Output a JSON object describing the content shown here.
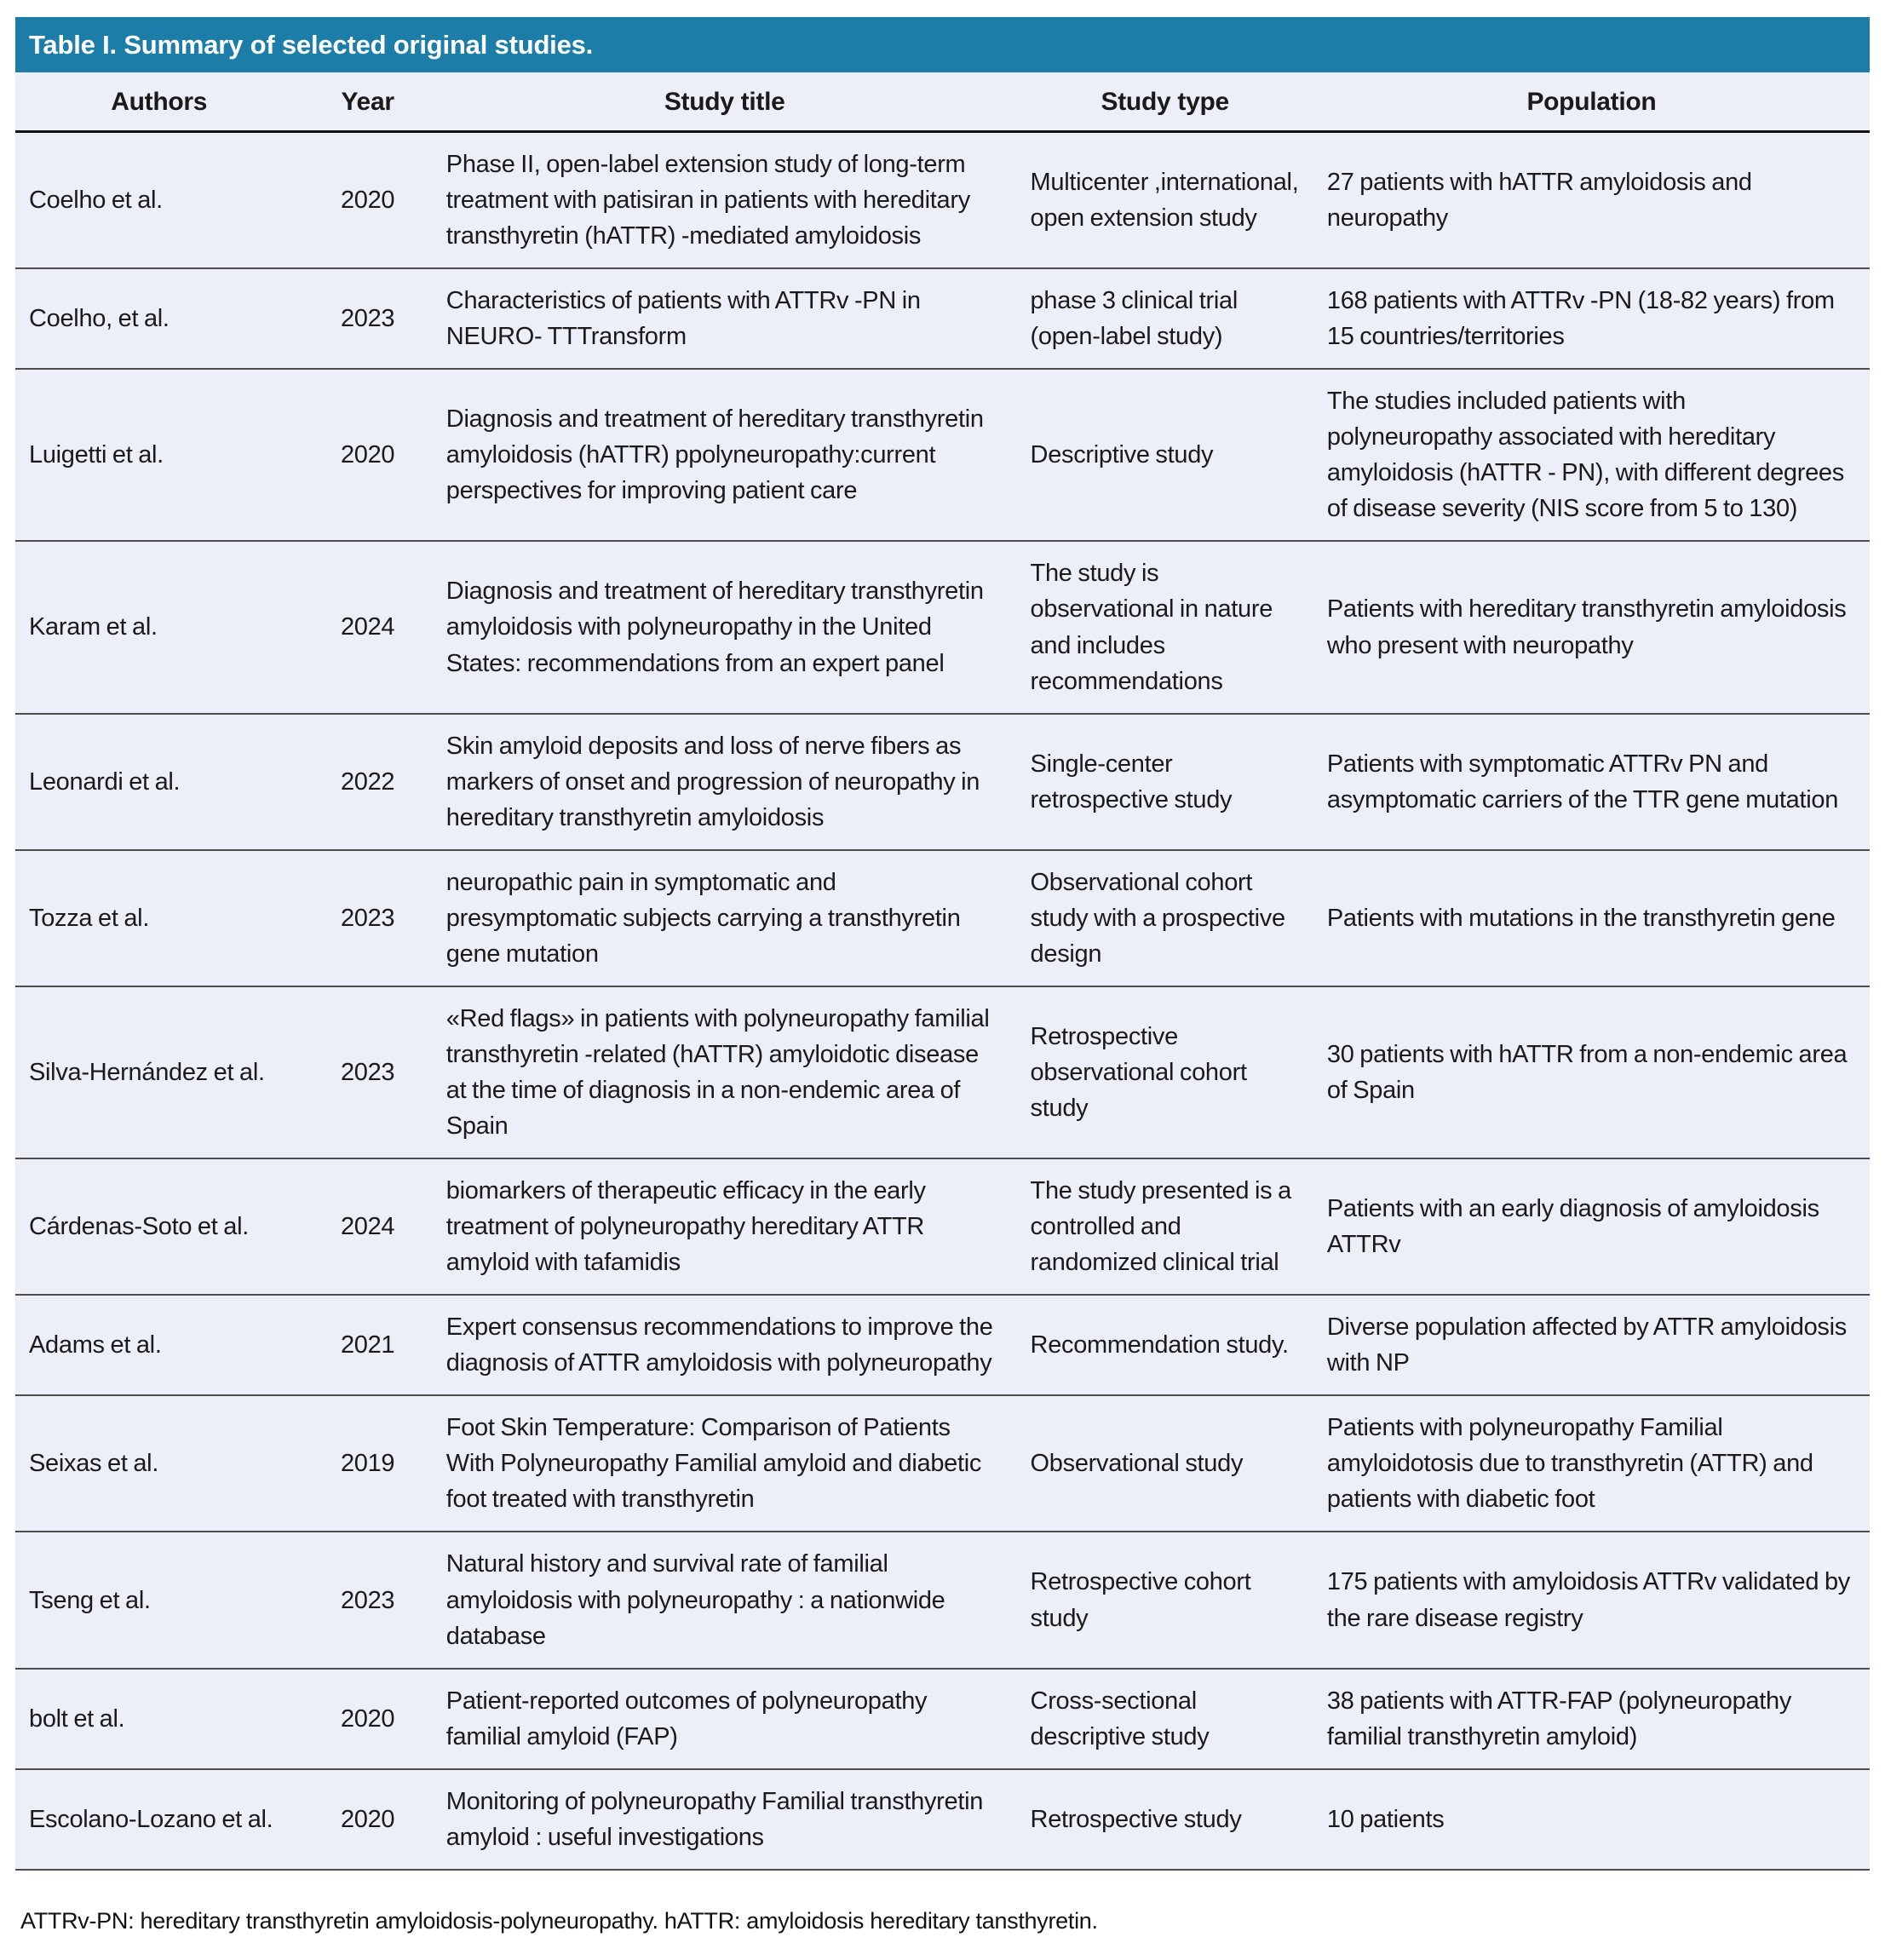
{
  "table": {
    "title": "Table I. Summary of selected original studies.",
    "columns": [
      "Authors",
      "Year",
      "Study title",
      "Study type",
      "Population"
    ],
    "rows": [
      {
        "authors": "Coelho et al.",
        "year": "2020",
        "title": "Phase II, open-label extension study of long-term treatment with patisiran in patients with hereditary transthyretin (hATTR) -mediated amyloidosis",
        "type": "Multicenter ,international, open extension study",
        "population": "27 patients with hATTR amyloidosis and neuropathy"
      },
      {
        "authors": "Coelho, et al.",
        "year": "2023",
        "title": "Characteristics of patients with ATTRv -PN in NEURO- TTTransform",
        "type": "phase 3 clinical trial (open-label study)",
        "population": "168 patients with ATTRv -PN (18-82 years) from 15 countries/territories"
      },
      {
        "authors": "Luigetti et al.",
        "year": "2020",
        "title": "Diagnosis and treatment of hereditary transthyretin amyloidosis (hATTR) ppolyneuropathy:current perspectives for improving patient care",
        "type": "Descriptive study",
        "population": "The studies included patients with polyneuropathy associated with hereditary amyloidosis (hATTR - PN), with different degrees of disease severity (NIS score from 5 to 130)"
      },
      {
        "authors": "Karam et al.",
        "year": "2024",
        "title": "Diagnosis and treatment of hereditary transthyretin amyloidosis with polyneuropathy in the United States: recommendations from an expert panel",
        "type": "The study is observational in nature and includes recommendations",
        "population": "Patients with hereditary transthyretin amyloidosis who present with neuropathy"
      },
      {
        "authors": "Leonardi et al.",
        "year": "2022",
        "title": "Skin amyloid deposits and loss of nerve fibers as markers of onset and progression of neuropathy in hereditary transthyretin amyloidosis",
        "type": "Single-center retrospective study",
        "population": "Patients with symptomatic ATTRv PN and asymptomatic carriers of the TTR gene mutation"
      },
      {
        "authors": "Tozza  et al.",
        "year": "2023",
        "title": "neuropathic pain in symptomatic and presymptomatic subjects carrying a transthyretin gene mutation",
        "type": "Observational cohort study with a prospective design",
        "population": "Patients with mutations in the transthyretin gene"
      },
      {
        "authors": "Silva-Hernández et al.",
        "year": "2023",
        "title": "«Red flags» in patients with polyneuropathy familial transthyretin -related (hATTR) amyloidotic disease at the time of diagnosis in a non-endemic area of Spain",
        "type": "Retrospective observational cohort study",
        "population": "30 patients with hATTR from a non-endemic area of Spain"
      },
      {
        "authors": "Cárdenas-Soto et al.",
        "year": "2024",
        "title": "biomarkers of therapeutic efficacy in the early treatment of polyneuropathy hereditary ATTR amyloid with tafamidis",
        "type": "The study presented is a controlled and randomized clinical trial",
        "population": "Patients with an early diagnosis of amyloidosis ATTRv"
      },
      {
        "authors": "Adams et al.",
        "year": "2021",
        "title": "Expert consensus recommendations to improve the diagnosis of ATTR amyloidosis with polyneuropathy",
        "type": "Recommendation study.",
        "population": "Diverse population affected by ATTR amyloidosis with NP"
      },
      {
        "authors": "Seixas et al.",
        "year": "2019",
        "title": "Foot Skin Temperature: Comparison of Patients With Polyneuropathy Familial amyloid and diabetic foot treated with transthyretin",
        "type": "Observational study",
        "population": "Patients with polyneuropathy Familial amyloidotosis due to transthyretin (ATTR) and patients with diabetic foot"
      },
      {
        "authors": "Tseng et al.",
        "year": "2023",
        "title": "Natural history and survival rate of familial amyloidosis with polyneuropathy : a nationwide database",
        "type": "Retrospective cohort study",
        "population": "175 patients with amyloidosis ATTRv validated by the rare disease registry"
      },
      {
        "authors": "bolt et al.",
        "year": "2020",
        "title": "Patient-reported outcomes of polyneuropathy familial amyloid (FAP)",
        "type": "Cross-sectional descriptive study",
        "population": "38 patients with ATTR-FAP (polyneuropathy familial transthyretin amyloid)"
      },
      {
        "authors": "Escolano-Lozano et al.",
        "year": "2020",
        "title": "Monitoring of polyneuropathy Familial transthyretin amyloid : useful investigations",
        "type": "Retrospective study",
        "population": "10 patients"
      }
    ],
    "footnote": "ATTRv-PN: hereditary transthyretin amyloidosis-polyneuropathy. hATTR: amyloidosis hereditary tansthyretin.",
    "colors": {
      "header_bar": "#1d7da9",
      "row_background": "#eceff8",
      "separator": "#4d4d4d"
    }
  }
}
